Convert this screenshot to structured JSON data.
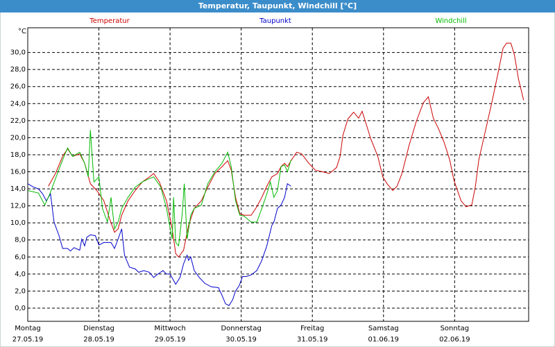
{
  "chart_data": {
    "type": "line",
    "title": "Temperatur, Taupunkt, Windchill [°C]",
    "ylabel": "°C",
    "xlim": [
      0,
      7.04
    ],
    "ylim": [
      -1.55,
      32.9
    ],
    "grid": true,
    "xticks": [
      {
        "value": 0,
        "label": "Montag"
      },
      {
        "value": 1,
        "label": "Dienstag"
      },
      {
        "value": 2,
        "label": "Mittwoch"
      },
      {
        "value": 3,
        "label": "Donnerstag"
      },
      {
        "value": 4,
        "label": "Freitag"
      },
      {
        "value": 5,
        "label": "Samstag"
      },
      {
        "value": 6,
        "label": "Sonntag"
      }
    ],
    "xtick_dates": [
      "27.05.19",
      "28.05.19",
      "29.05.19",
      "30.05.19",
      "31.05.19",
      "01.06.19",
      "02.06.19"
    ],
    "yticks": [
      {
        "value": 0,
        "label": "0,0"
      },
      {
        "value": 2,
        "label": "2,0"
      },
      {
        "value": 4,
        "label": "4,0"
      },
      {
        "value": 6,
        "label": "6,0"
      },
      {
        "value": 8,
        "label": "8,0"
      },
      {
        "value": 10,
        "label": "10,0"
      },
      {
        "value": 12,
        "label": "12,0"
      },
      {
        "value": 14,
        "label": "14,0"
      },
      {
        "value": 16,
        "label": "16,0"
      },
      {
        "value": 18,
        "label": "18,0"
      },
      {
        "value": 20,
        "label": "20,0"
      },
      {
        "value": 22,
        "label": "22,0"
      },
      {
        "value": 24,
        "label": "24,0"
      },
      {
        "value": 26,
        "label": "26,0"
      },
      {
        "value": 28,
        "label": "28,0"
      },
      {
        "value": 30,
        "label": "30,0"
      }
    ],
    "series": [
      {
        "name": "Temperatur",
        "color": "#cc0000",
        "x": [
          0.29,
          0.39,
          0.49,
          0.56,
          0.63,
          0.73,
          0.8,
          0.88,
          0.97,
          1.07,
          1.15,
          1.22,
          1.27,
          1.32,
          1.41,
          1.51,
          1.61,
          1.71,
          1.77,
          1.85,
          1.95,
          2.03,
          2.08,
          2.12,
          2.19,
          2.26,
          2.34,
          2.44,
          2.53,
          2.63,
          2.73,
          2.81,
          2.86,
          2.92,
          2.98,
          3.04,
          3.14,
          3.22,
          3.29,
          3.36,
          3.43,
          3.51,
          3.56,
          3.61,
          3.65,
          3.7,
          3.78,
          3.85,
          3.95,
          4.04,
          4.14,
          4.24,
          4.34,
          4.39,
          4.43,
          4.5,
          4.58,
          4.65,
          4.7,
          4.76,
          4.82,
          4.92,
          4.99,
          5.05,
          5.13,
          5.19,
          5.26,
          5.36,
          5.46,
          5.56,
          5.63,
          5.7,
          5.77,
          5.85,
          5.93,
          5.99,
          6.09,
          6.16,
          6.24,
          6.29,
          6.34,
          6.43,
          6.53,
          6.61,
          6.68,
          6.73,
          6.79,
          6.84,
          6.9,
          6.97
        ],
        "values": [
          14.3,
          15.8,
          17.8,
          18.7,
          17.8,
          18.1,
          17.0,
          14.6,
          13.8,
          12.6,
          10.5,
          8.9,
          9.3,
          10.9,
          12.6,
          13.8,
          14.8,
          15.4,
          15.8,
          14.8,
          12.6,
          9.3,
          6.4,
          6.0,
          6.8,
          9.7,
          11.7,
          12.6,
          14.2,
          15.8,
          16.6,
          17.3,
          16.2,
          13.0,
          11.1,
          10.9,
          10.9,
          11.9,
          13.0,
          14.3,
          15.4,
          15.8,
          16.6,
          17.0,
          16.6,
          17.3,
          18.3,
          18.1,
          17.0,
          16.2,
          16.0,
          15.8,
          16.5,
          17.8,
          20.3,
          22.2,
          23.0,
          22.3,
          23.1,
          21.5,
          19.9,
          17.8,
          15.4,
          14.6,
          13.8,
          14.3,
          15.8,
          19.1,
          21.9,
          24.1,
          24.8,
          22.3,
          21.1,
          19.5,
          17.4,
          15.0,
          12.6,
          11.9,
          12.1,
          14.2,
          17.4,
          20.7,
          24.4,
          27.6,
          30.5,
          31.1,
          31.1,
          29.7,
          26.8,
          24.4
        ]
      },
      {
        "name": "Taupunkt",
        "color": "#0000cc",
        "x": [
          0,
          0.08,
          0.15,
          0.21,
          0.26,
          0.32,
          0.37,
          0.44,
          0.49,
          0.56,
          0.6,
          0.65,
          0.73,
          0.76,
          0.8,
          0.83,
          0.88,
          0.95,
          1.0,
          1.07,
          1.17,
          1.22,
          1.27,
          1.32,
          1.36,
          1.43,
          1.51,
          1.56,
          1.63,
          1.71,
          1.77,
          1.83,
          1.9,
          1.95,
          2.0,
          2.08,
          2.14,
          2.19,
          2.24,
          2.26,
          2.29,
          2.34,
          2.41,
          2.49,
          2.58,
          2.68,
          2.73,
          2.78,
          2.83,
          2.88,
          2.92,
          2.97,
          3.02,
          3.07,
          3.14,
          3.22,
          3.29,
          3.36,
          3.43,
          3.46,
          3.51,
          3.56,
          3.61,
          3.65,
          3.7
        ],
        "values": [
          14.6,
          14.2,
          14.0,
          13.4,
          12.6,
          13.4,
          10.1,
          8.5,
          7.0,
          7.0,
          6.7,
          7.1,
          6.8,
          8.1,
          7.3,
          8.3,
          8.6,
          8.5,
          7.4,
          7.7,
          7.7,
          7.0,
          8.1,
          9.3,
          6.2,
          4.8,
          4.6,
          4.2,
          4.4,
          4.2,
          3.6,
          4.0,
          4.4,
          4.0,
          4.0,
          2.8,
          3.6,
          5.2,
          6.2,
          5.6,
          6.0,
          4.4,
          3.6,
          2.9,
          2.5,
          2.4,
          1.5,
          0.5,
          0.3,
          1.0,
          2.0,
          2.6,
          3.7,
          3.7,
          3.9,
          4.4,
          5.6,
          7.3,
          9.7,
          10.1,
          11.7,
          12.1,
          13.0,
          14.6,
          14.3
        ]
      },
      {
        "name": "Windchill",
        "color": "#00bb00",
        "x": [
          0,
          0.15,
          0.24,
          0.31,
          0.39,
          0.49,
          0.56,
          0.63,
          0.73,
          0.8,
          0.85,
          0.88,
          0.93,
          1.0,
          1.05,
          1.12,
          1.17,
          1.22,
          1.27,
          1.32,
          1.41,
          1.51,
          1.61,
          1.71,
          1.77,
          1.87,
          1.95,
          2.03,
          2.05,
          2.08,
          2.12,
          2.17,
          2.2,
          2.24,
          2.29,
          2.34,
          2.44,
          2.53,
          2.63,
          2.73,
          2.81,
          2.86,
          2.92,
          2.98,
          3.04,
          3.14,
          3.22,
          3.29,
          3.36,
          3.41,
          3.46,
          3.51,
          3.56,
          3.61,
          3.65,
          3.7
        ],
        "values": [
          13.8,
          13.5,
          12.1,
          13.4,
          15.2,
          17.4,
          18.8,
          17.8,
          18.3,
          17.0,
          15.4,
          20.9,
          14.8,
          15.4,
          11.7,
          10.1,
          13.0,
          9.3,
          10.1,
          11.7,
          13.0,
          14.2,
          14.8,
          15.2,
          15.4,
          14.2,
          11.7,
          8.1,
          13.0,
          7.7,
          7.3,
          10.9,
          14.6,
          8.1,
          10.9,
          11.7,
          12.1,
          14.6,
          16.0,
          17.0,
          18.3,
          16.6,
          12.6,
          10.9,
          10.8,
          10.1,
          10.1,
          11.7,
          13.4,
          14.8,
          13.0,
          13.8,
          16.6,
          16.8,
          16.0,
          17.4
        ]
      }
    ]
  }
}
